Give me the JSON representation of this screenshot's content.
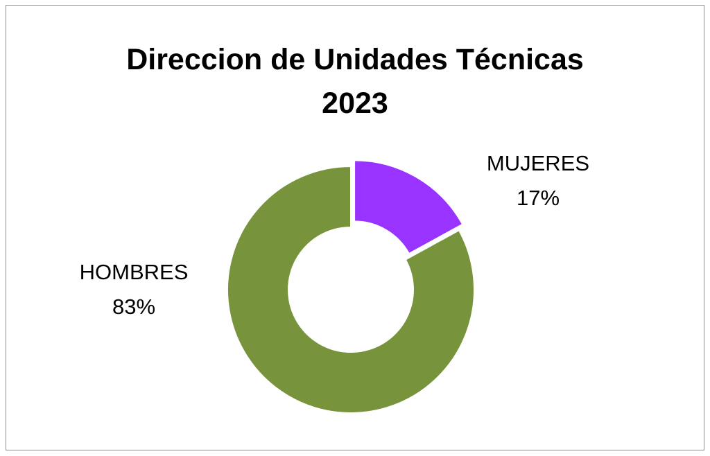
{
  "chart_data": {
    "type": "pie",
    "variant": "doughnut",
    "title": "Direccion de Unidades Técnicas 2023",
    "title_lines": [
      "Direccion de Unidades Técnicas",
      "2023"
    ],
    "categories": [
      "MUJERES",
      "HOMBRES"
    ],
    "values": [
      17,
      83
    ],
    "value_labels": [
      "17%",
      "83%"
    ],
    "colors": [
      "#9933ff",
      "#77933c"
    ],
    "exploded": [
      "MUJERES"
    ],
    "legend": "none"
  }
}
